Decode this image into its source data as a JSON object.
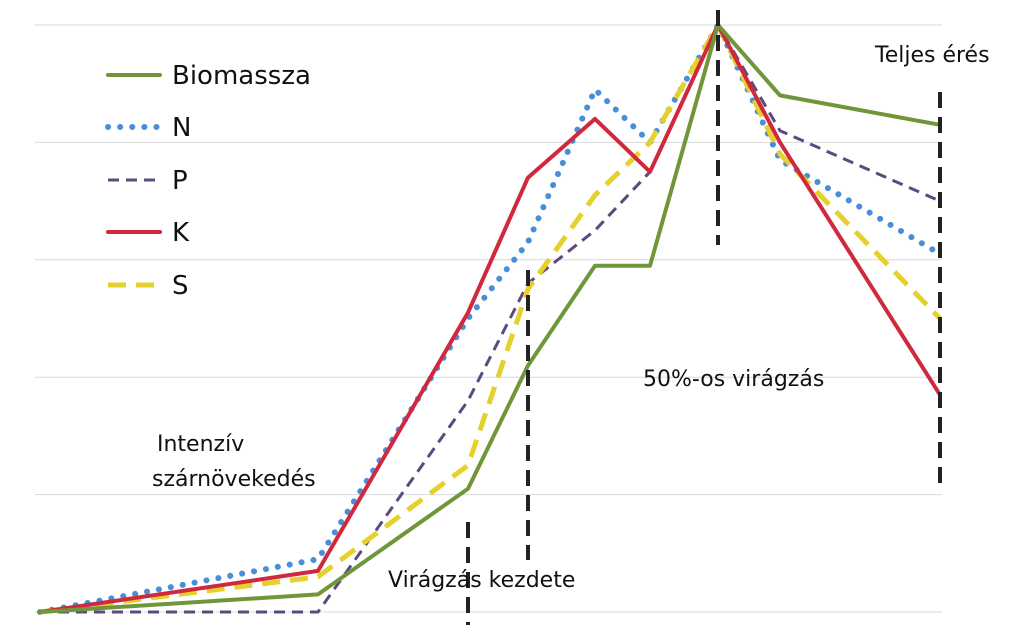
{
  "chart_data": {
    "type": "line",
    "x": [
      0,
      1,
      2,
      3,
      4,
      5,
      6,
      7,
      8
    ],
    "ylim": [
      0,
      100
    ],
    "grid": true,
    "legend_position": "top-left",
    "series": [
      {
        "name": "Biomassza",
        "color": "#70963a",
        "dash": "solid",
        "values": [
          0,
          3,
          21,
          42,
          59,
          59,
          100,
          88,
          83
        ]
      },
      {
        "name": "N",
        "color": "#4a8ed8",
        "dash": "dotted",
        "values": [
          0,
          9,
          50,
          63,
          89,
          80,
          100,
          77,
          61
        ]
      },
      {
        "name": "P",
        "color": "#5c4a7e",
        "dash": "dashed",
        "values": [
          0,
          0,
          36,
          56,
          65,
          75,
          100,
          82,
          70
        ]
      },
      {
        "name": "K",
        "color": "#d0283c",
        "dash": "solid",
        "values": [
          0,
          7,
          51,
          74,
          84,
          75,
          100,
          80,
          37
        ]
      },
      {
        "name": "S",
        "color": "#e6d12c",
        "dash": "dashed",
        "values": [
          0,
          6,
          25,
          55,
          71,
          80,
          100,
          78,
          50
        ]
      }
    ],
    "stage_markers": [
      {
        "x": 2,
        "label": "Intenzív szárnövekedés"
      },
      {
        "x": 3,
        "label": "Virágzás kezdete"
      },
      {
        "x": 6,
        "label": "50%-os virágzás"
      },
      {
        "x": 8,
        "label": "Teljes érés"
      }
    ]
  }
}
